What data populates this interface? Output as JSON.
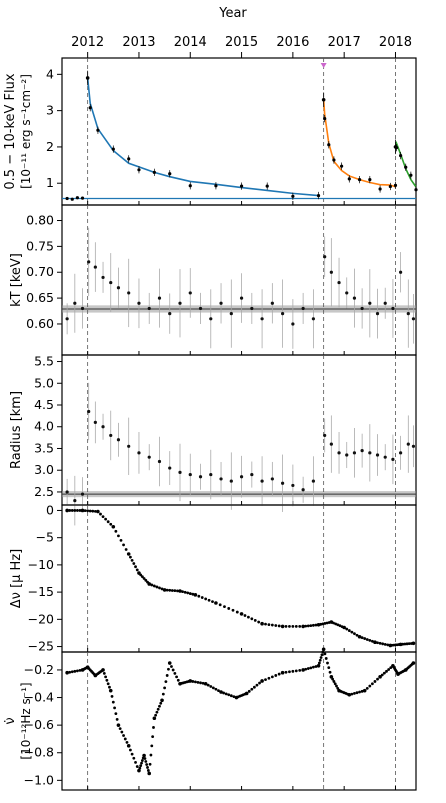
{
  "figure": {
    "top_axis_label": "Year"
  },
  "chart_data": [
    {
      "type": "scatter",
      "panel": "flux",
      "ylabel_line1": "0.5 − 10-keV Flux",
      "ylabel_line2": "[10⁻¹¹ erg s⁻¹cm⁻²]",
      "xlim": [
        2011.5,
        2018.4
      ],
      "ylim": [
        0.4,
        4.45
      ],
      "yticks": [
        1,
        2,
        3,
        4
      ],
      "xticks": [
        2012,
        2013,
        2014,
        2015,
        2016,
        2017,
        2018
      ],
      "xtick_labels": [
        "2012",
        "2013",
        "2014",
        "2015",
        "2016",
        "2017",
        "2018"
      ],
      "marker_color": "#000000",
      "quiescent_level": 0.58,
      "outbursts": [
        {
          "t0": 2012.0,
          "peak": 3.9,
          "decay": [
            [
              2012.05,
              3.2
            ],
            [
              2012.2,
              2.5
            ],
            [
              2012.5,
              1.9
            ],
            [
              2012.8,
              1.55
            ],
            [
              2013.0,
              1.45
            ],
            [
              2013.3,
              1.3
            ],
            [
              2013.6,
              1.18
            ],
            [
              2014.0,
              1.05
            ],
            [
              2014.5,
              0.97
            ],
            [
              2015.0,
              0.88
            ],
            [
              2015.5,
              0.8
            ],
            [
              2016.0,
              0.72
            ],
            [
              2016.5,
              0.66
            ]
          ],
          "fit_color": "#1f77b4"
        },
        {
          "t0": 2016.6,
          "peak": 3.3,
          "decay": [
            [
              2016.62,
              2.9
            ],
            [
              2016.7,
              2.1
            ],
            [
              2016.8,
              1.6
            ],
            [
              2016.95,
              1.35
            ],
            [
              2017.1,
              1.2
            ],
            [
              2017.3,
              1.1
            ],
            [
              2017.5,
              1.02
            ],
            [
              2017.7,
              0.96
            ],
            [
              2017.9,
              0.95
            ],
            [
              2018.0,
              0.9
            ]
          ],
          "fit_color": "#ff7f0e"
        },
        {
          "t0": 2018.0,
          "peak": 2.0,
          "decay": [
            [
              2018.02,
              2.1
            ],
            [
              2018.1,
              1.8
            ],
            [
              2018.2,
              1.4
            ],
            [
              2018.3,
              1.1
            ],
            [
              2018.4,
              0.9
            ]
          ],
          "fit_color": "#2ca02c"
        }
      ],
      "pre_outburst_points": [
        [
          2011.6,
          0.58
        ],
        [
          2011.7,
          0.56
        ],
        [
          2011.8,
          0.6
        ],
        [
          2011.9,
          0.59
        ]
      ],
      "marker_top": {
        "x": 2016.6,
        "color": "#cc66cc"
      }
    },
    {
      "type": "scatter",
      "panel": "kT",
      "ylabel": "kT [keV]",
      "ylim": [
        0.54,
        0.83
      ],
      "yticks": [
        0.6,
        0.65,
        0.7,
        0.75,
        0.8
      ],
      "ytick_labels": [
        "0.60",
        "0.65",
        "0.70",
        "0.75",
        "0.80"
      ],
      "quiescent_band": {
        "center": 0.629,
        "half_width": 0.007
      },
      "points": [
        [
          2011.6,
          0.61
        ],
        [
          2011.75,
          0.64
        ],
        [
          2011.9,
          0.63
        ],
        [
          2012.02,
          0.72
        ],
        [
          2012.15,
          0.71
        ],
        [
          2012.3,
          0.69
        ],
        [
          2012.45,
          0.68
        ],
        [
          2012.6,
          0.67
        ],
        [
          2012.8,
          0.66
        ],
        [
          2013.0,
          0.64
        ],
        [
          2013.2,
          0.63
        ],
        [
          2013.4,
          0.65
        ],
        [
          2013.6,
          0.62
        ],
        [
          2013.8,
          0.64
        ],
        [
          2014.0,
          0.66
        ],
        [
          2014.2,
          0.63
        ],
        [
          2014.4,
          0.61
        ],
        [
          2014.6,
          0.64
        ],
        [
          2014.8,
          0.62
        ],
        [
          2015.0,
          0.65
        ],
        [
          2015.2,
          0.63
        ],
        [
          2015.4,
          0.61
        ],
        [
          2015.6,
          0.64
        ],
        [
          2015.8,
          0.62
        ],
        [
          2016.0,
          0.6
        ],
        [
          2016.2,
          0.63
        ],
        [
          2016.4,
          0.61
        ],
        [
          2016.62,
          0.73
        ],
        [
          2016.75,
          0.7
        ],
        [
          2016.9,
          0.68
        ],
        [
          2017.05,
          0.66
        ],
        [
          2017.2,
          0.65
        ],
        [
          2017.35,
          0.63
        ],
        [
          2017.5,
          0.64
        ],
        [
          2017.65,
          0.62
        ],
        [
          2017.8,
          0.64
        ],
        [
          2017.95,
          0.63
        ],
        [
          2018.1,
          0.7
        ],
        [
          2018.25,
          0.62
        ],
        [
          2018.35,
          0.61
        ]
      ]
    },
    {
      "type": "scatter",
      "panel": "radius",
      "ylabel": "Radius [km]",
      "ylim": [
        2.2,
        5.65
      ],
      "yticks": [
        2.5,
        3.0,
        3.5,
        4.0,
        4.5,
        5.0,
        5.5
      ],
      "ytick_labels": [
        "2.5",
        "3.0",
        "3.5",
        "4.0",
        "4.5",
        "5.0",
        "5.5"
      ],
      "quiescent_band": {
        "center": 2.45,
        "half_width": 0.07
      },
      "points": [
        [
          2011.6,
          2.5
        ],
        [
          2011.75,
          2.3
        ],
        [
          2011.9,
          2.45
        ],
        [
          2012.02,
          4.35
        ],
        [
          2012.15,
          4.1
        ],
        [
          2012.3,
          4.0
        ],
        [
          2012.45,
          3.8
        ],
        [
          2012.6,
          3.7
        ],
        [
          2012.8,
          3.55
        ],
        [
          2013.0,
          3.4
        ],
        [
          2013.2,
          3.3
        ],
        [
          2013.4,
          3.2
        ],
        [
          2013.6,
          3.05
        ],
        [
          2013.8,
          2.95
        ],
        [
          2014.0,
          2.9
        ],
        [
          2014.2,
          2.85
        ],
        [
          2014.4,
          2.9
        ],
        [
          2014.6,
          2.8
        ],
        [
          2014.8,
          2.75
        ],
        [
          2015.0,
          2.85
        ],
        [
          2015.2,
          2.9
        ],
        [
          2015.4,
          2.75
        ],
        [
          2015.6,
          2.8
        ],
        [
          2015.8,
          2.7
        ],
        [
          2016.0,
          2.65
        ],
        [
          2016.2,
          2.55
        ],
        [
          2016.4,
          2.75
        ],
        [
          2016.62,
          3.8
        ],
        [
          2016.75,
          3.6
        ],
        [
          2016.9,
          3.4
        ],
        [
          2017.05,
          3.35
        ],
        [
          2017.2,
          3.4
        ],
        [
          2017.35,
          3.45
        ],
        [
          2017.5,
          3.4
        ],
        [
          2017.65,
          3.35
        ],
        [
          2017.8,
          3.3
        ],
        [
          2017.95,
          3.25
        ],
        [
          2018.1,
          3.4
        ],
        [
          2018.25,
          3.6
        ],
        [
          2018.35,
          3.55
        ]
      ]
    },
    {
      "type": "line",
      "panel": "dnu",
      "ylabel": "Δν [μ Hz]",
      "ylim": [
        -26,
        1
      ],
      "yticks": [
        0,
        -5,
        -10,
        -15,
        -20,
        -25
      ],
      "ytick_labels": [
        "0",
        "−5",
        "−10",
        "−15",
        "−20",
        "−25"
      ],
      "points": [
        [
          2011.6,
          0
        ],
        [
          2011.9,
          0
        ],
        [
          2012.2,
          -0.2
        ],
        [
          2012.5,
          -3
        ],
        [
          2012.8,
          -8
        ],
        [
          2013.0,
          -11.5
        ],
        [
          2013.2,
          -13.5
        ],
        [
          2013.5,
          -14.6
        ],
        [
          2013.8,
          -14.8
        ],
        [
          2014.1,
          -15.5
        ],
        [
          2014.5,
          -17
        ],
        [
          2015.0,
          -19
        ],
        [
          2015.4,
          -20.8
        ],
        [
          2015.8,
          -21.3
        ],
        [
          2016.2,
          -21.3
        ],
        [
          2016.5,
          -21.0
        ],
        [
          2016.75,
          -20.5
        ],
        [
          2017.0,
          -21.5
        ],
        [
          2017.3,
          -23.2
        ],
        [
          2017.6,
          -24.2
        ],
        [
          2017.9,
          -24.8
        ],
        [
          2018.1,
          -24.6
        ],
        [
          2018.35,
          -24.4
        ]
      ]
    },
    {
      "type": "line",
      "panel": "nudot",
      "ylabel_line1": "ν̇",
      "ylabel_line2": "[10⁻¹²Hz s⁻¹]",
      "ylim": [
        -1.07,
        -0.07
      ],
      "yticks": [
        -0.2,
        -0.4,
        -0.6,
        -0.8,
        -1.0
      ],
      "ytick_labels": [
        "−0.2",
        "−0.4",
        "−0.6",
        "−0.8",
        "−1.0"
      ],
      "points": [
        [
          2011.6,
          -0.22
        ],
        [
          2011.9,
          -0.2
        ],
        [
          2012.0,
          -0.18
        ],
        [
          2012.15,
          -0.24
        ],
        [
          2012.3,
          -0.2
        ],
        [
          2012.45,
          -0.35
        ],
        [
          2012.6,
          -0.6
        ],
        [
          2012.8,
          -0.75
        ],
        [
          2013.0,
          -0.93
        ],
        [
          2013.1,
          -0.82
        ],
        [
          2013.2,
          -0.95
        ],
        [
          2013.3,
          -0.55
        ],
        [
          2013.45,
          -0.42
        ],
        [
          2013.6,
          -0.15
        ],
        [
          2013.8,
          -0.3
        ],
        [
          2014.0,
          -0.28
        ],
        [
          2014.3,
          -0.3
        ],
        [
          2014.6,
          -0.36
        ],
        [
          2014.9,
          -0.4
        ],
        [
          2015.1,
          -0.37
        ],
        [
          2015.4,
          -0.28
        ],
        [
          2015.8,
          -0.22
        ],
        [
          2016.2,
          -0.2
        ],
        [
          2016.5,
          -0.17
        ],
        [
          2016.6,
          -0.05
        ],
        [
          2016.75,
          -0.25
        ],
        [
          2016.9,
          -0.35
        ],
        [
          2017.1,
          -0.38
        ],
        [
          2017.4,
          -0.35
        ],
        [
          2017.7,
          -0.25
        ],
        [
          2017.95,
          -0.17
        ],
        [
          2018.05,
          -0.23
        ],
        [
          2018.2,
          -0.2
        ],
        [
          2018.35,
          -0.15
        ]
      ]
    }
  ],
  "vertical_markers": [
    2012.0,
    2016.6,
    2018.0
  ]
}
